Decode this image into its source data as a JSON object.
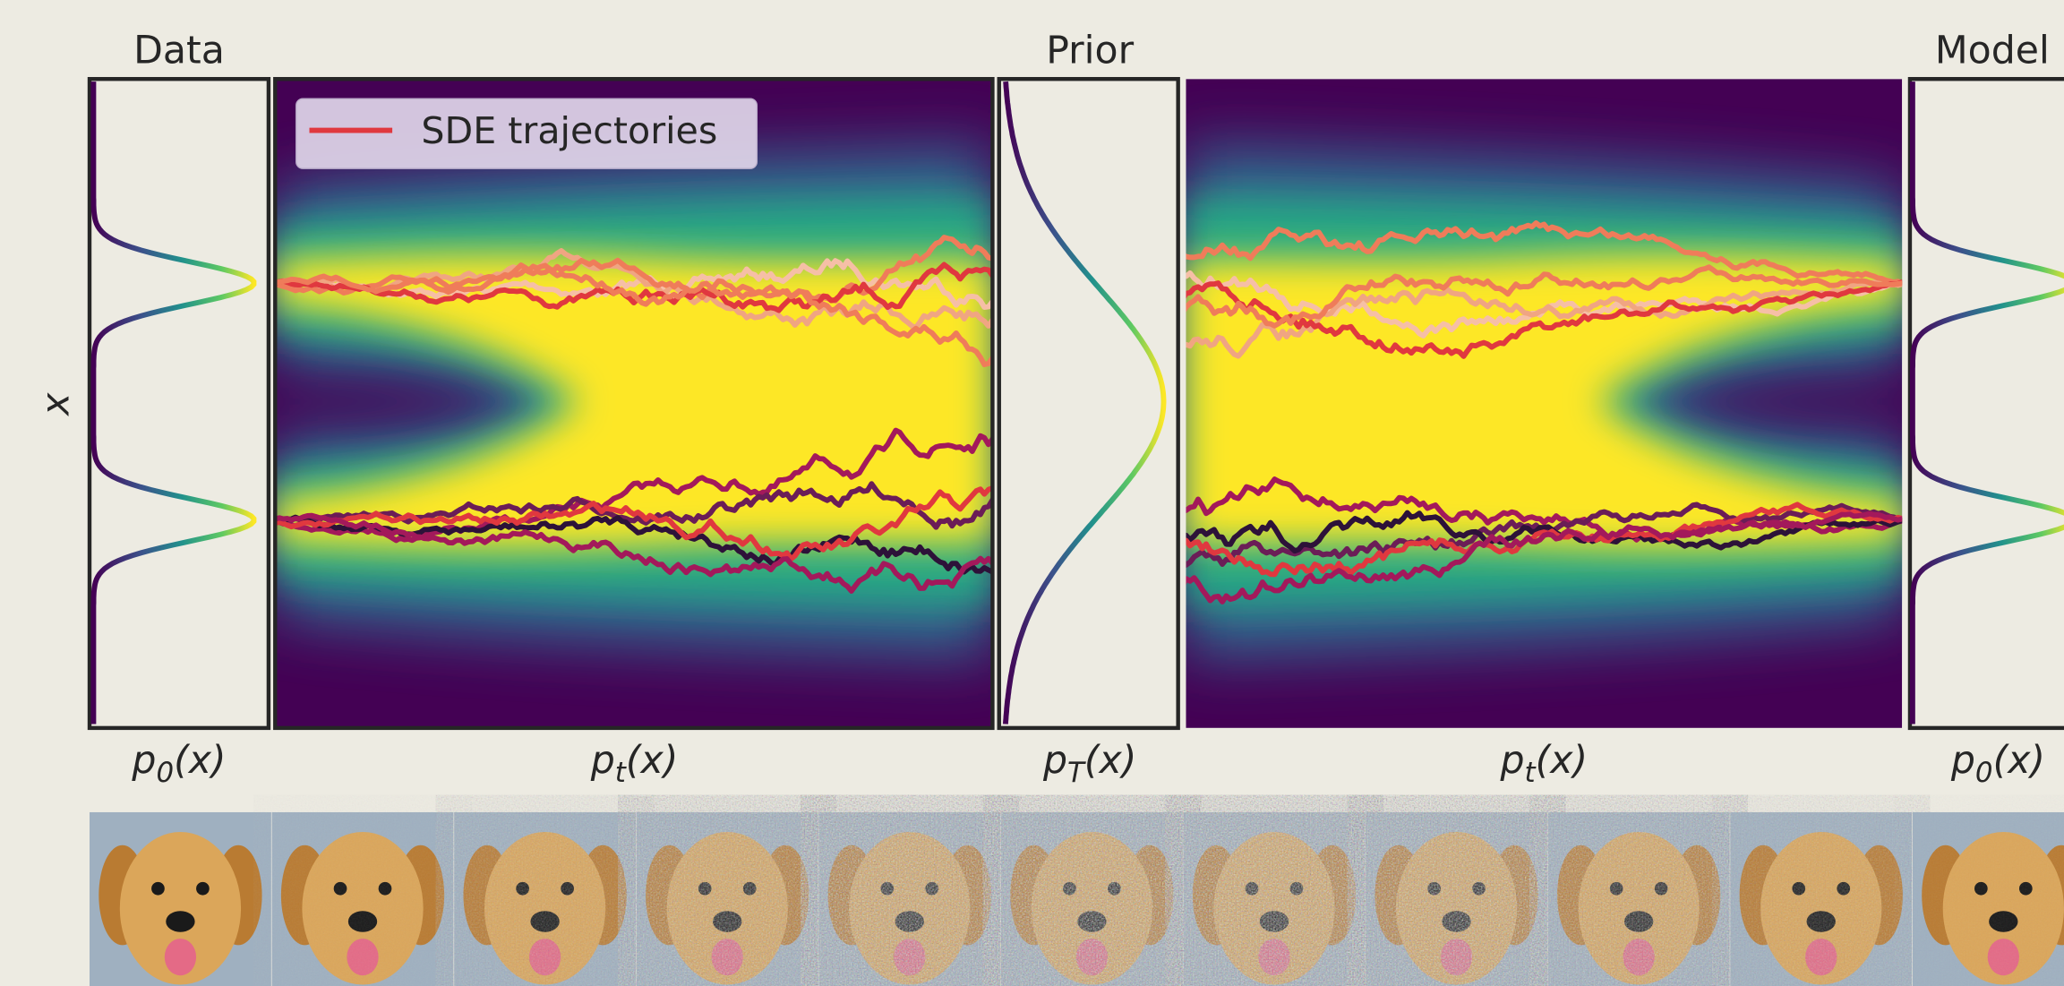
{
  "titles": {
    "data": "Data",
    "prior": "Prior",
    "model": "Model"
  },
  "y_axis_label": "x",
  "legend": "SDE trajectories",
  "panel_labels": [
    {
      "base": "p",
      "sub": "0",
      "arg": "(x)"
    },
    {
      "base": "p",
      "sub": "t",
      "arg": "(x)"
    },
    {
      "base": "p",
      "sub": "T",
      "arg": "(x)"
    },
    {
      "base": "p",
      "sub": "t",
      "arg": "(x)"
    },
    {
      "base": "p",
      "sub": "0",
      "arg": "(x)"
    }
  ]
}
